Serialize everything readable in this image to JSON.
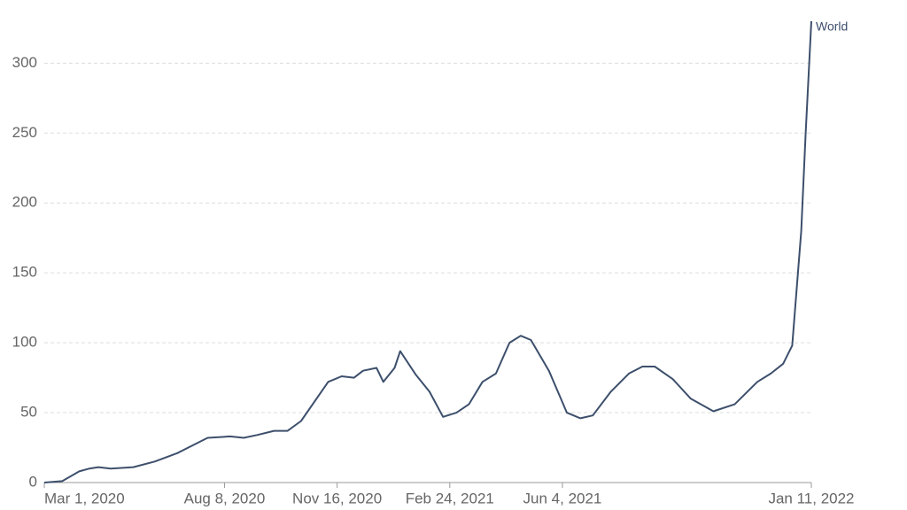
{
  "chart_data": {
    "type": "line",
    "x": [
      "Mar 1, 2020",
      "Mar 17, 2020",
      "Apr 1, 2020",
      "Apr 10, 2020",
      "Apr 18, 2020",
      "Apr 29, 2020",
      "May 19, 2020",
      "Jun 7, 2020",
      "Jun 27, 2020",
      "Jul 24, 2020",
      "Aug 13, 2020",
      "Aug 25, 2020",
      "Sep 6, 2020",
      "Sep 21, 2020",
      "Oct 3, 2020",
      "Oct 15, 2020",
      "Nov 8, 2020",
      "Nov 20, 2020",
      "Dec 1, 2020",
      "Dec 9, 2020",
      "Dec 21, 2020",
      "Dec 27, 2020",
      "Jan 6, 2021",
      "Jan 11, 2021",
      "Jan 25, 2021",
      "Feb 6, 2021",
      "Feb 18, 2021",
      "Mar 2, 2021",
      "Mar 13, 2021",
      "Mar 25, 2021",
      "Apr 6, 2021",
      "Apr 18, 2021",
      "Apr 28, 2021",
      "May 7, 2021",
      "May 23, 2021",
      "Jun 8, 2021",
      "Jun 20, 2021",
      "Jul 1, 2021",
      "Jul 17, 2021",
      "Aug 2, 2021",
      "Aug 14, 2021",
      "Aug 25, 2021",
      "Sep 10, 2021",
      "Sep 26, 2021",
      "Oct 16, 2021",
      "Nov 4, 2021",
      "Nov 24, 2021",
      "Dec 6, 2021",
      "Dec 17, 2021",
      "Dec 25, 2021",
      "Jan 2, 2022",
      "Jan 6, 2022",
      "Jan 11, 2022"
    ],
    "series": [
      {
        "name": "World",
        "color": "#3d4f6c",
        "values": [
          0,
          1,
          8,
          10,
          11,
          10,
          11,
          15,
          21,
          32,
          33,
          32,
          34,
          37,
          37,
          44,
          72,
          76,
          75,
          80,
          82,
          72,
          82,
          94,
          77,
          65,
          47,
          50,
          56,
          72,
          78,
          100,
          105,
          102,
          80,
          50,
          46,
          48,
          65,
          78,
          83,
          83,
          74,
          60,
          51,
          56,
          72,
          78,
          85,
          98,
          180,
          250,
          330
        ]
      }
    ],
    "xlim": [
      "Mar 1, 2020",
      "Jan 11, 2022"
    ],
    "xticks": [
      "Mar 1, 2020",
      "Aug 8, 2020",
      "Nov 16, 2020",
      "Feb 24, 2021",
      "Jun 4, 2021",
      "Jan 11, 2022"
    ],
    "ylim": [
      0,
      330
    ],
    "yticks": [
      0,
      50,
      100,
      150,
      200,
      250,
      300
    ],
    "grid": true
  }
}
